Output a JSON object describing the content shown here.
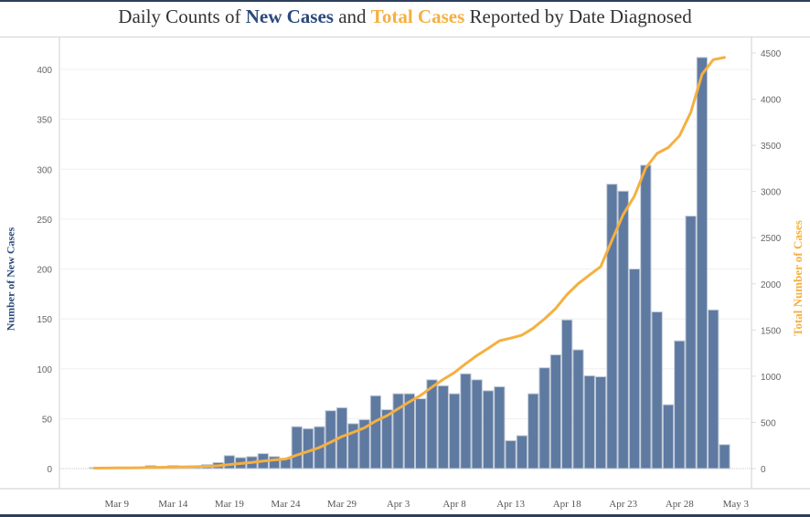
{
  "chart_data": {
    "type": "bar",
    "title_parts": [
      {
        "text": "Daily Counts of ",
        "style": "plain"
      },
      {
        "text": "New Cases",
        "style": "new"
      },
      {
        "text": " and ",
        "style": "plain"
      },
      {
        "text": "Total Cases",
        "style": "total"
      },
      {
        "text": " Reported by Date Diagnosed",
        "style": "plain"
      }
    ],
    "title": "Daily Counts of New Cases and Total Cases Reported by Date Diagnosed",
    "xlabel": "",
    "ylabel": "Number of New Cases",
    "y2label": "Total Number of Cases",
    "ylim": [
      0,
      420
    ],
    "y2lim": [
      0,
      4650
    ],
    "yticks": [
      0,
      50,
      100,
      150,
      200,
      250,
      300,
      350,
      400
    ],
    "y2ticks": [
      0,
      500,
      1000,
      1500,
      2000,
      2500,
      3000,
      3500,
      4000,
      4500
    ],
    "xtick_labels": [
      "Mar 9",
      "Mar 14",
      "Mar 19",
      "Mar 24",
      "Mar 29",
      "Apr 3",
      "Apr 8",
      "Apr 13",
      "Apr 18",
      "Apr 23",
      "Apr 28",
      "May 3"
    ],
    "xtick_day_index": [
      2,
      7,
      12,
      17,
      22,
      27,
      32,
      37,
      42,
      47,
      52,
      57
    ],
    "grid": true,
    "legend": "none (encoded in title colors)",
    "colors": {
      "new_cases": "#5f7aa1",
      "total_cases": "#f5b041",
      "new_title": "#2b4a7c"
    },
    "dates": [
      "Mar 7",
      "Mar 8",
      "Mar 9",
      "Mar 10",
      "Mar 11",
      "Mar 12",
      "Mar 13",
      "Mar 14",
      "Mar 15",
      "Mar 16",
      "Mar 17",
      "Mar 18",
      "Mar 19",
      "Mar 20",
      "Mar 21",
      "Mar 22",
      "Mar 23",
      "Mar 24",
      "Mar 25",
      "Mar 26",
      "Mar 27",
      "Mar 28",
      "Mar 29",
      "Mar 30",
      "Mar 31",
      "Apr 1",
      "Apr 2",
      "Apr 3",
      "Apr 4",
      "Apr 5",
      "Apr 6",
      "Apr 7",
      "Apr 8",
      "Apr 9",
      "Apr 10",
      "Apr 11",
      "Apr 12",
      "Apr 13",
      "Apr 14",
      "Apr 15",
      "Apr 16",
      "Apr 17",
      "Apr 18",
      "Apr 19",
      "Apr 20",
      "Apr 21",
      "Apr 22",
      "Apr 23",
      "Apr 24",
      "Apr 25",
      "Apr 26",
      "Apr 27",
      "Apr 28",
      "Apr 29",
      "Apr 30",
      "May 1",
      "May 2"
    ],
    "series": [
      {
        "name": "New Cases",
        "axis": "left",
        "type": "bar",
        "values": [
          1,
          1,
          1,
          1,
          1,
          3,
          2,
          3,
          2,
          2,
          4,
          6,
          13,
          11,
          12,
          15,
          12,
          10,
          42,
          40,
          42,
          58,
          61,
          45,
          49,
          73,
          59,
          75,
          75,
          70,
          89,
          83,
          75,
          95,
          89,
          78,
          82,
          28,
          33,
          75,
          101,
          114,
          149,
          119,
          93,
          92,
          285,
          278,
          200,
          304,
          157,
          64,
          128,
          253,
          412,
          159,
          24
        ]
      },
      {
        "name": "Total Cases",
        "axis": "right",
        "type": "line",
        "values": [
          5,
          6,
          7,
          8,
          9,
          12,
          14,
          17,
          19,
          21,
          25,
          31,
          44,
          55,
          67,
          82,
          94,
          104,
          146,
          186,
          228,
          286,
          347,
          392,
          441,
          514,
          573,
          648,
          723,
          793,
          882,
          965,
          1040,
          1135,
          1224,
          1302,
          1384,
          1412,
          1445,
          1520,
          1621,
          1735,
          1884,
          2003,
          2096,
          2188,
          2473,
          2751,
          2951,
          3255,
          3412,
          3476,
          3604,
          3857,
          4269,
          4428,
          4452
        ]
      }
    ]
  }
}
